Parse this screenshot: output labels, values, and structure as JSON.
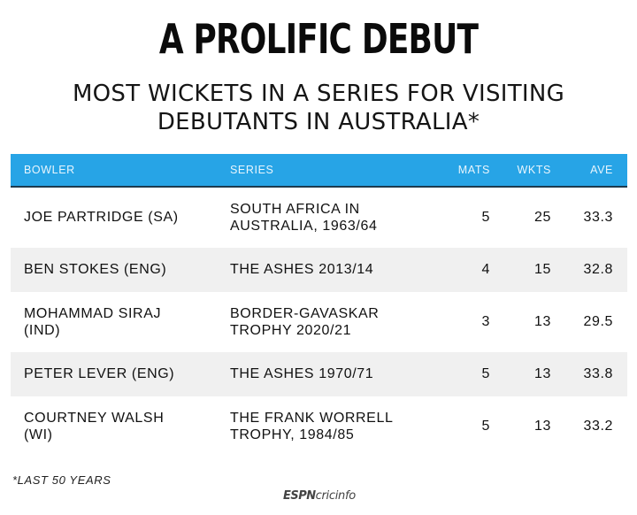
{
  "title": "A PROLIFIC DEBUT",
  "subtitle": "MOST WICKETS IN A SERIES FOR VISITING DEBUTANTS IN AUSTRALIA*",
  "footnote": "*LAST 50 YEARS",
  "logo": {
    "espn": "ESPN",
    "cricinfo": "cricinfo"
  },
  "colors": {
    "header_bg": "#27a4e6",
    "row_shade": "#f0f0f0"
  },
  "chart_data": {
    "type": "table",
    "title": "A PROLIFIC DEBUT",
    "subtitle": "MOST WICKETS IN A SERIES FOR VISITING DEBUTANTS IN AUSTRALIA*",
    "columns": [
      "BOWLER",
      "SERIES",
      "MATS",
      "WKTS",
      "AVE"
    ],
    "rows": [
      {
        "bowler": [
          "JOE PARTRIDGE (SA)"
        ],
        "series": [
          "SOUTH AFRICA IN",
          "AUSTRALIA, 1963/64"
        ],
        "mats": "5",
        "wkts": "25",
        "ave": "33.3"
      },
      {
        "bowler": [
          "BEN STOKES (ENG)"
        ],
        "series": [
          "THE ASHES 2013/14"
        ],
        "mats": "4",
        "wkts": "15",
        "ave": "32.8"
      },
      {
        "bowler": [
          "MOHAMMAD SIRAJ",
          "(IND)"
        ],
        "series": [
          "BORDER-GAVASKAR",
          "TROPHY 2020/21"
        ],
        "mats": "3",
        "wkts": "13",
        "ave": "29.5"
      },
      {
        "bowler": [
          "PETER LEVER (ENG)"
        ],
        "series": [
          "THE ASHES 1970/71"
        ],
        "mats": "5",
        "wkts": "13",
        "ave": "33.8"
      },
      {
        "bowler": [
          "COURTNEY WALSH",
          "(WI)"
        ],
        "series": [
          "THE FRANK WORRELL",
          "TROPHY, 1984/85"
        ],
        "mats": "5",
        "wkts": "13",
        "ave": "33.2"
      }
    ]
  }
}
